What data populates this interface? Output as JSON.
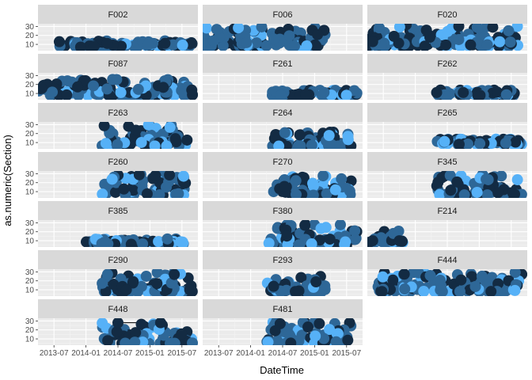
{
  "chart_data": {
    "type": "scatter",
    "xlabel": "DateTime",
    "ylabel": "as.numeric(Section)",
    "x_ticks": [
      "2013-07",
      "2014-01",
      "2014-07",
      "2015-01",
      "2015-07"
    ],
    "y_ticks": [
      10,
      20,
      30
    ],
    "xlim": [
      "2013-04",
      "2015-10"
    ],
    "ylim": [
      3,
      33
    ],
    "facet_layout": {
      "cols": 3,
      "rows": 7
    },
    "colors": {
      "panel_bg": "#ebebeb",
      "grid_major": "#ffffff",
      "grid_minor": "#f4f4f4",
      "strip_bg": "#d9d9d9",
      "point_dark": "#132b43",
      "point_mid": "#2e6797",
      "point_light": "#56b1f7",
      "line": "#000000"
    },
    "facets": [
      {
        "name": "F002",
        "range": [
          "2013-08",
          "2015-09"
        ],
        "y": [
          8,
          14
        ],
        "lines": [
          [
            [
              "2013-08",
              13
            ],
            [
              "2013-12",
              7
            ],
            [
              "2014-05",
              11
            ]
          ]
        ]
      },
      {
        "name": "F006",
        "range": [
          "2013-04",
          "2015-03"
        ],
        "y": [
          8,
          30
        ],
        "lines": []
      },
      {
        "name": "F020",
        "range": [
          "2013-04",
          "2015-09"
        ],
        "y": [
          8,
          32
        ],
        "lines": [
          [
            [
              "2013-05",
              13
            ],
            [
              "2013-09",
              19
            ]
          ]
        ]
      },
      {
        "name": "F087",
        "range": [
          "2013-04",
          "2015-09"
        ],
        "y": [
          8,
          26
        ],
        "lines": []
      },
      {
        "name": "F261",
        "range": [
          "2014-05",
          "2015-09"
        ],
        "y": [
          8,
          14
        ],
        "lines": []
      },
      {
        "name": "F262",
        "range": [
          "2014-05",
          "2015-08"
        ],
        "y": [
          8,
          14
        ],
        "lines": [
          [
            [
              "2014-05",
              11
            ],
            [
              "2014-10",
              11
            ]
          ]
        ]
      },
      {
        "name": "F263",
        "range": [
          "2014-04",
          "2015-08"
        ],
        "y": [
          6,
          30
        ],
        "lines": []
      },
      {
        "name": "F264",
        "range": [
          "2014-05",
          "2015-08"
        ],
        "y": [
          6,
          22
        ],
        "lines": []
      },
      {
        "name": "F265",
        "range": [
          "2014-05",
          "2015-09"
        ],
        "y": [
          8,
          14
        ],
        "lines": []
      },
      {
        "name": "F260",
        "range": [
          "2014-04",
          "2015-08"
        ],
        "y": [
          6,
          30
        ],
        "lines": []
      },
      {
        "name": "F270",
        "range": [
          "2014-05",
          "2015-08"
        ],
        "y": [
          6,
          28
        ],
        "lines": []
      },
      {
        "name": "F345",
        "range": [
          "2014-05",
          "2015-09"
        ],
        "y": [
          6,
          30
        ],
        "lines": []
      },
      {
        "name": "F385",
        "range": [
          "2014-01",
          "2015-08"
        ],
        "y": [
          6,
          12
        ],
        "lines": []
      },
      {
        "name": "F380",
        "range": [
          "2014-04",
          "2015-09"
        ],
        "y": [
          5,
          28
        ],
        "lines": []
      },
      {
        "name": "F214",
        "range": [
          "2013-04",
          "2013-11"
        ],
        "y": [
          8,
          22
        ],
        "lines": [
          [
            [
              "2013-05",
              10
            ],
            [
              "2013-10",
              10
            ]
          ]
        ]
      },
      {
        "name": "F290",
        "range": [
          "2014-04",
          "2015-09"
        ],
        "y": [
          8,
          30
        ],
        "lines": []
      },
      {
        "name": "F293",
        "range": [
          "2014-04",
          "2015-03"
        ],
        "y": [
          8,
          28
        ],
        "lines": []
      },
      {
        "name": "F444",
        "range": [
          "2013-06",
          "2015-09"
        ],
        "y": [
          8,
          30
        ],
        "lines": []
      },
      {
        "name": "F448",
        "range": [
          "2014-04",
          "2015-09"
        ],
        "y": [
          5,
          30
        ],
        "lines": [
          [
            [
              "2014-07",
              28
            ],
            [
              "2015-03",
              28
            ]
          ]
        ]
      },
      {
        "name": "F481",
        "range": [
          "2014-04",
          "2015-08"
        ],
        "y": [
          5,
          30
        ],
        "lines": []
      }
    ]
  }
}
